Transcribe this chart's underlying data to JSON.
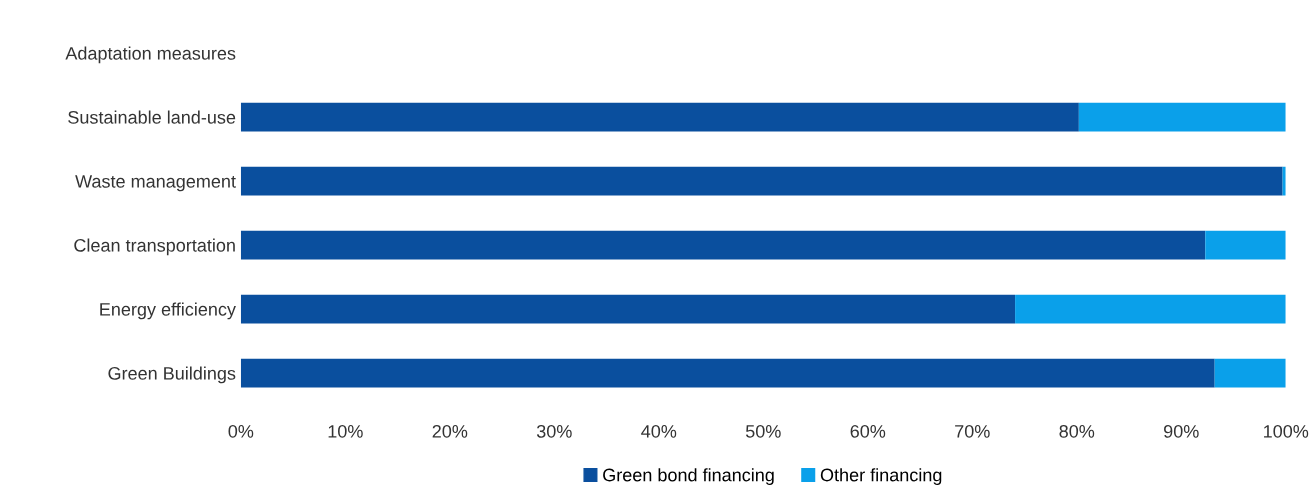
{
  "chart_data": {
    "type": "bar",
    "orientation": "horizontal",
    "stacked": true,
    "categories": [
      "Adaptation measures",
      "Sustainable land-use",
      "Waste management",
      "Clean transportation",
      "Energy efficiency",
      "Green Buildings"
    ],
    "series": [
      {
        "name": "Green bond financing",
        "color": "#0a4f9e",
        "values": [
          null,
          80.2,
          99.7,
          92.3,
          74.1,
          93.2
        ]
      },
      {
        "name": "Other financing",
        "color": "#0aa0ea",
        "values": [
          null,
          19.8,
          0.3,
          7.7,
          25.9,
          6.8
        ]
      }
    ],
    "xlim": [
      0,
      100
    ],
    "xticks": [
      {
        "value": 0,
        "label": "0%"
      },
      {
        "value": 10,
        "label": "10%"
      },
      {
        "value": 20,
        "label": "20%"
      },
      {
        "value": 30,
        "label": "30%"
      },
      {
        "value": 40,
        "label": "40%"
      },
      {
        "value": 50,
        "label": "50%"
      },
      {
        "value": 60,
        "label": "60%"
      },
      {
        "value": 70,
        "label": "70%"
      },
      {
        "value": 80,
        "label": "80%"
      },
      {
        "value": 90,
        "label": "90%"
      },
      {
        "value": 100,
        "label": "100%"
      }
    ],
    "grid": false,
    "legend": "bottom"
  }
}
